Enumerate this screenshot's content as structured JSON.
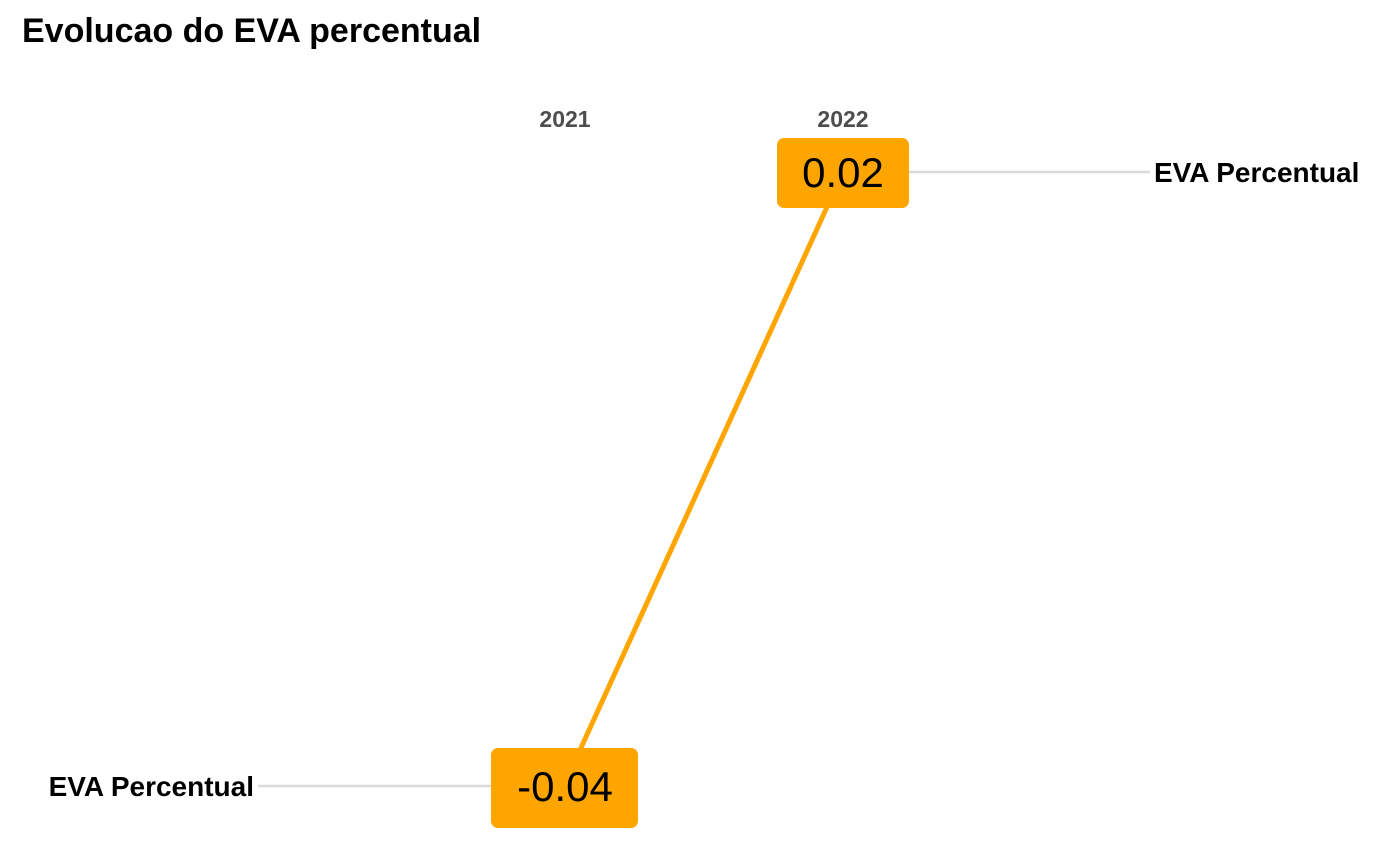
{
  "chart_data": {
    "type": "line",
    "title": "Evolucao do EVA percentual",
    "categories": [
      "2021",
      "2022"
    ],
    "series": [
      {
        "name": "EVA Percentual",
        "values": [
          -0.04,
          0.02
        ],
        "value_labels": [
          "-0.04",
          "0.02"
        ],
        "color": "#FFA500"
      }
    ],
    "left_label": "EVA Percentual",
    "right_label": "EVA Percentual",
    "grid": false,
    "axis_position": "top"
  }
}
